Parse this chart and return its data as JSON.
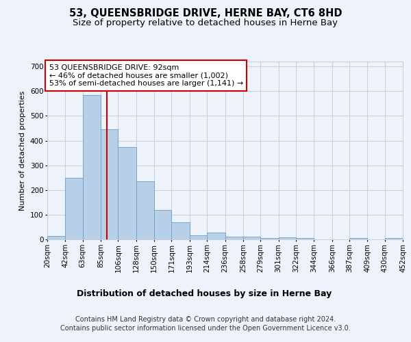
{
  "title": "53, QUEENSBRIDGE DRIVE, HERNE BAY, CT6 8HD",
  "subtitle": "Size of property relative to detached houses in Herne Bay",
  "xlabel": "Distribution of detached houses by size in Herne Bay",
  "ylabel": "Number of detached properties",
  "bin_edges": [
    20,
    42,
    63,
    85,
    106,
    128,
    150,
    171,
    193,
    214,
    236,
    258,
    279,
    301,
    322,
    344,
    366,
    387,
    409,
    430,
    452
  ],
  "bar_heights": [
    15,
    248,
    585,
    447,
    373,
    236,
    118,
    68,
    18,
    28,
    11,
    10,
    6,
    8,
    5,
    0,
    0,
    5,
    0,
    5
  ],
  "bar_color": "#b8cfe8",
  "bar_edgecolor": "#6a9ec5",
  "property_size": 92,
  "vline_color": "#cc0000",
  "annotation_line1": "53 QUEENSBRIDGE DRIVE: 92sqm",
  "annotation_line2": "← 46% of detached houses are smaller (1,002)",
  "annotation_line3": "53% of semi-detached houses are larger (1,141) →",
  "annotation_box_facecolor": "#ffffff",
  "annotation_box_edgecolor": "#cc0000",
  "ylim": [
    0,
    720
  ],
  "yticks": [
    0,
    100,
    200,
    300,
    400,
    500,
    600,
    700
  ],
  "footer_line1": "Contains HM Land Registry data © Crown copyright and database right 2024.",
  "footer_line2": "Contains public sector information licensed under the Open Government Licence v3.0.",
  "bg_color": "#eef2fb",
  "plot_bg_color": "#eef2fb",
  "grid_color": "#c8d0e4",
  "title_fontsize": 10.5,
  "subtitle_fontsize": 9.5,
  "xlabel_fontsize": 9,
  "ylabel_fontsize": 8,
  "tick_fontsize": 7.5,
  "annotation_fontsize": 8,
  "footer_fontsize": 7
}
